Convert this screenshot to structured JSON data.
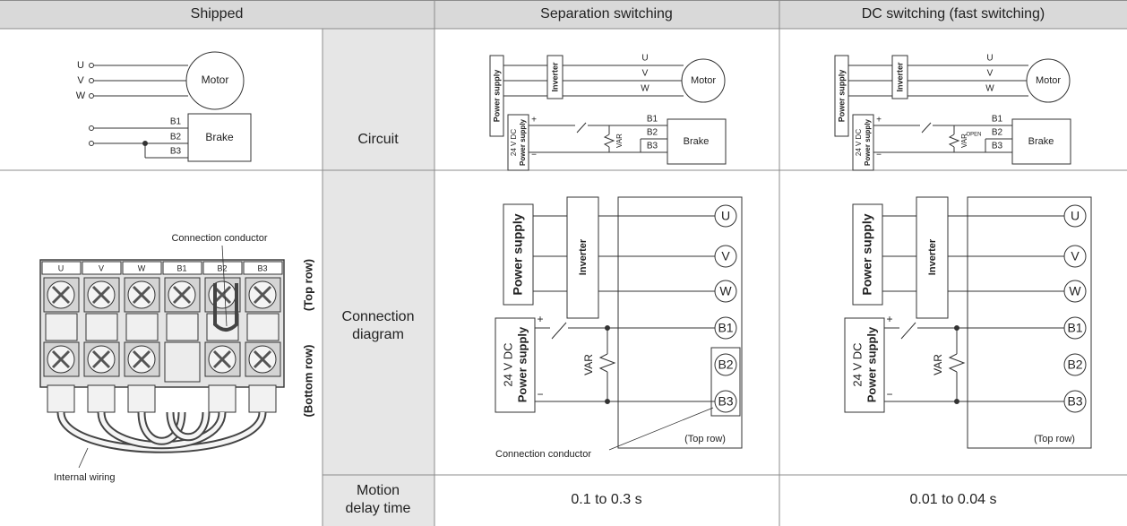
{
  "header": {
    "columns": [
      "Shipped",
      "Separation switching",
      "DC switching (fast switching)"
    ]
  },
  "row_labels": {
    "circuit": [
      "Circuit"
    ],
    "connection_diagram": [
      "Connection",
      "diagram"
    ],
    "motion_delay_time": [
      "Motion",
      "delay time"
    ]
  },
  "shipped": {
    "circuit": {
      "motor_terminals": [
        "U",
        "V",
        "W"
      ],
      "motor": "Motor",
      "brake_terminals": [
        "B1",
        "B2",
        "B3"
      ],
      "brake": "Brake"
    },
    "terminal_block": {
      "terminals": [
        "U",
        "V",
        "W",
        "B1",
        "B2",
        "B3"
      ],
      "connection_conductor": "Connection conductor",
      "top_row": "(Top row)",
      "bottom_row": "(Bottom row)",
      "internal_wiring": "Internal wiring"
    }
  },
  "separation_switching": {
    "circuit": {
      "power_supply": "Power supply",
      "inverter": "Inverter",
      "motor_terminals": [
        "U",
        "V",
        "W"
      ],
      "motor": "Motor",
      "dc_supply": [
        "24 V DC",
        "Power supply"
      ],
      "plus": "+",
      "minus": "−",
      "var": "VAR",
      "brake_terminals": [
        "B1",
        "B2",
        "B3"
      ],
      "brake": "Brake"
    },
    "connection_diagram": {
      "power_supply": "Power supply",
      "inverter": "Inverter",
      "terminals": [
        "U",
        "V",
        "W",
        "B1",
        "B2",
        "B3"
      ],
      "dc_supply": [
        "24 V DC",
        "Power supply"
      ],
      "plus": "+",
      "minus": "−",
      "var": "VAR",
      "top_row": "(Top row)",
      "connection_conductor": "Connection conductor"
    },
    "motion_delay_time": "0.1 to 0.3 s"
  },
  "dc_switching": {
    "circuit": {
      "power_supply": "Power supply",
      "inverter": "Inverter",
      "motor_terminals": [
        "U",
        "V",
        "W"
      ],
      "motor": "Motor",
      "dc_supply": [
        "24 V DC",
        "Power supply"
      ],
      "plus": "+",
      "minus": "−",
      "var": "VAR",
      "open": "OPEN",
      "brake_terminals": [
        "B1",
        "B2",
        "B3"
      ],
      "brake": "Brake"
    },
    "connection_diagram": {
      "power_supply": "Power supply",
      "inverter": "Inverter",
      "terminals": [
        "U",
        "V",
        "W",
        "B1",
        "B2",
        "B3"
      ],
      "dc_supply": [
        "24 V DC",
        "Power supply"
      ],
      "plus": "+",
      "minus": "−",
      "var": "VAR",
      "top_row": "(Top row)"
    },
    "motion_delay_time": "0.01 to 0.04 s"
  }
}
